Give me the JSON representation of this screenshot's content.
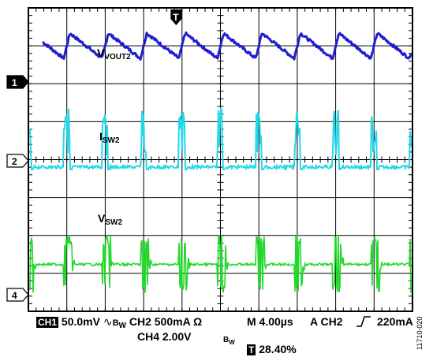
{
  "chart_data": {
    "type": "line",
    "title": "",
    "time_divisions": 10,
    "vertical_divisions": 8,
    "series": [
      {
        "name": "VVOUT2",
        "channel": "1",
        "color": "#1f1fd0",
        "scale": "50.0mV",
        "shape": "sawtooth",
        "period_div": 1.0,
        "first_peak_div": 1.08,
        "peak_level_div": 2.6,
        "trough_level_div": 1.9,
        "jitter_div": 0.08
      },
      {
        "name": "ISW2",
        "channel": "2",
        "color": "#22d8e8",
        "scale": "500mA",
        "shape": "pulse",
        "period_div": 1.0,
        "first_pulse_div": 0.92,
        "baseline_div": 0.0,
        "pulse_height_div": 1.55,
        "pulse_width_div": 0.15
      },
      {
        "name": "VSW2",
        "channel": "4",
        "color": "#22d82a",
        "scale": "2.00V",
        "shape": "switching",
        "period_div": 1.0,
        "first_burst_div": 0.92,
        "baseline_div": 0.8,
        "burst_high_div": 1.6,
        "burst_low_div": -0.05,
        "burst_width_div": 0.22
      }
    ]
  },
  "trace_labels": {
    "vout": {
      "main": "V",
      "sub": "VOUT2"
    },
    "isw": {
      "main": "I",
      "sub": "SW2"
    },
    "vsw": {
      "main": "V",
      "sub": "SW2"
    }
  },
  "markers": {
    "ch1": "1",
    "ch2": "2",
    "ch4": "4",
    "trigger": "T"
  },
  "readout": {
    "ch1_badge": "CH1",
    "ch1_scale": "50.0mV",
    "bw_symbol": "∿",
    "bw_label": "B",
    "bw_sub": "W",
    "ch2_scale": "CH2 500mA Ω",
    "timebase": "M 4.00µs",
    "trigger": "A CH2",
    "trigger_level": "220mA",
    "ch4_scale": "CH4 2.00V",
    "bw2_label": "B",
    "bw2_sub": "W",
    "trigger_badge": "T",
    "trigger_position": "28.40%"
  },
  "figure_code": "11710-020"
}
